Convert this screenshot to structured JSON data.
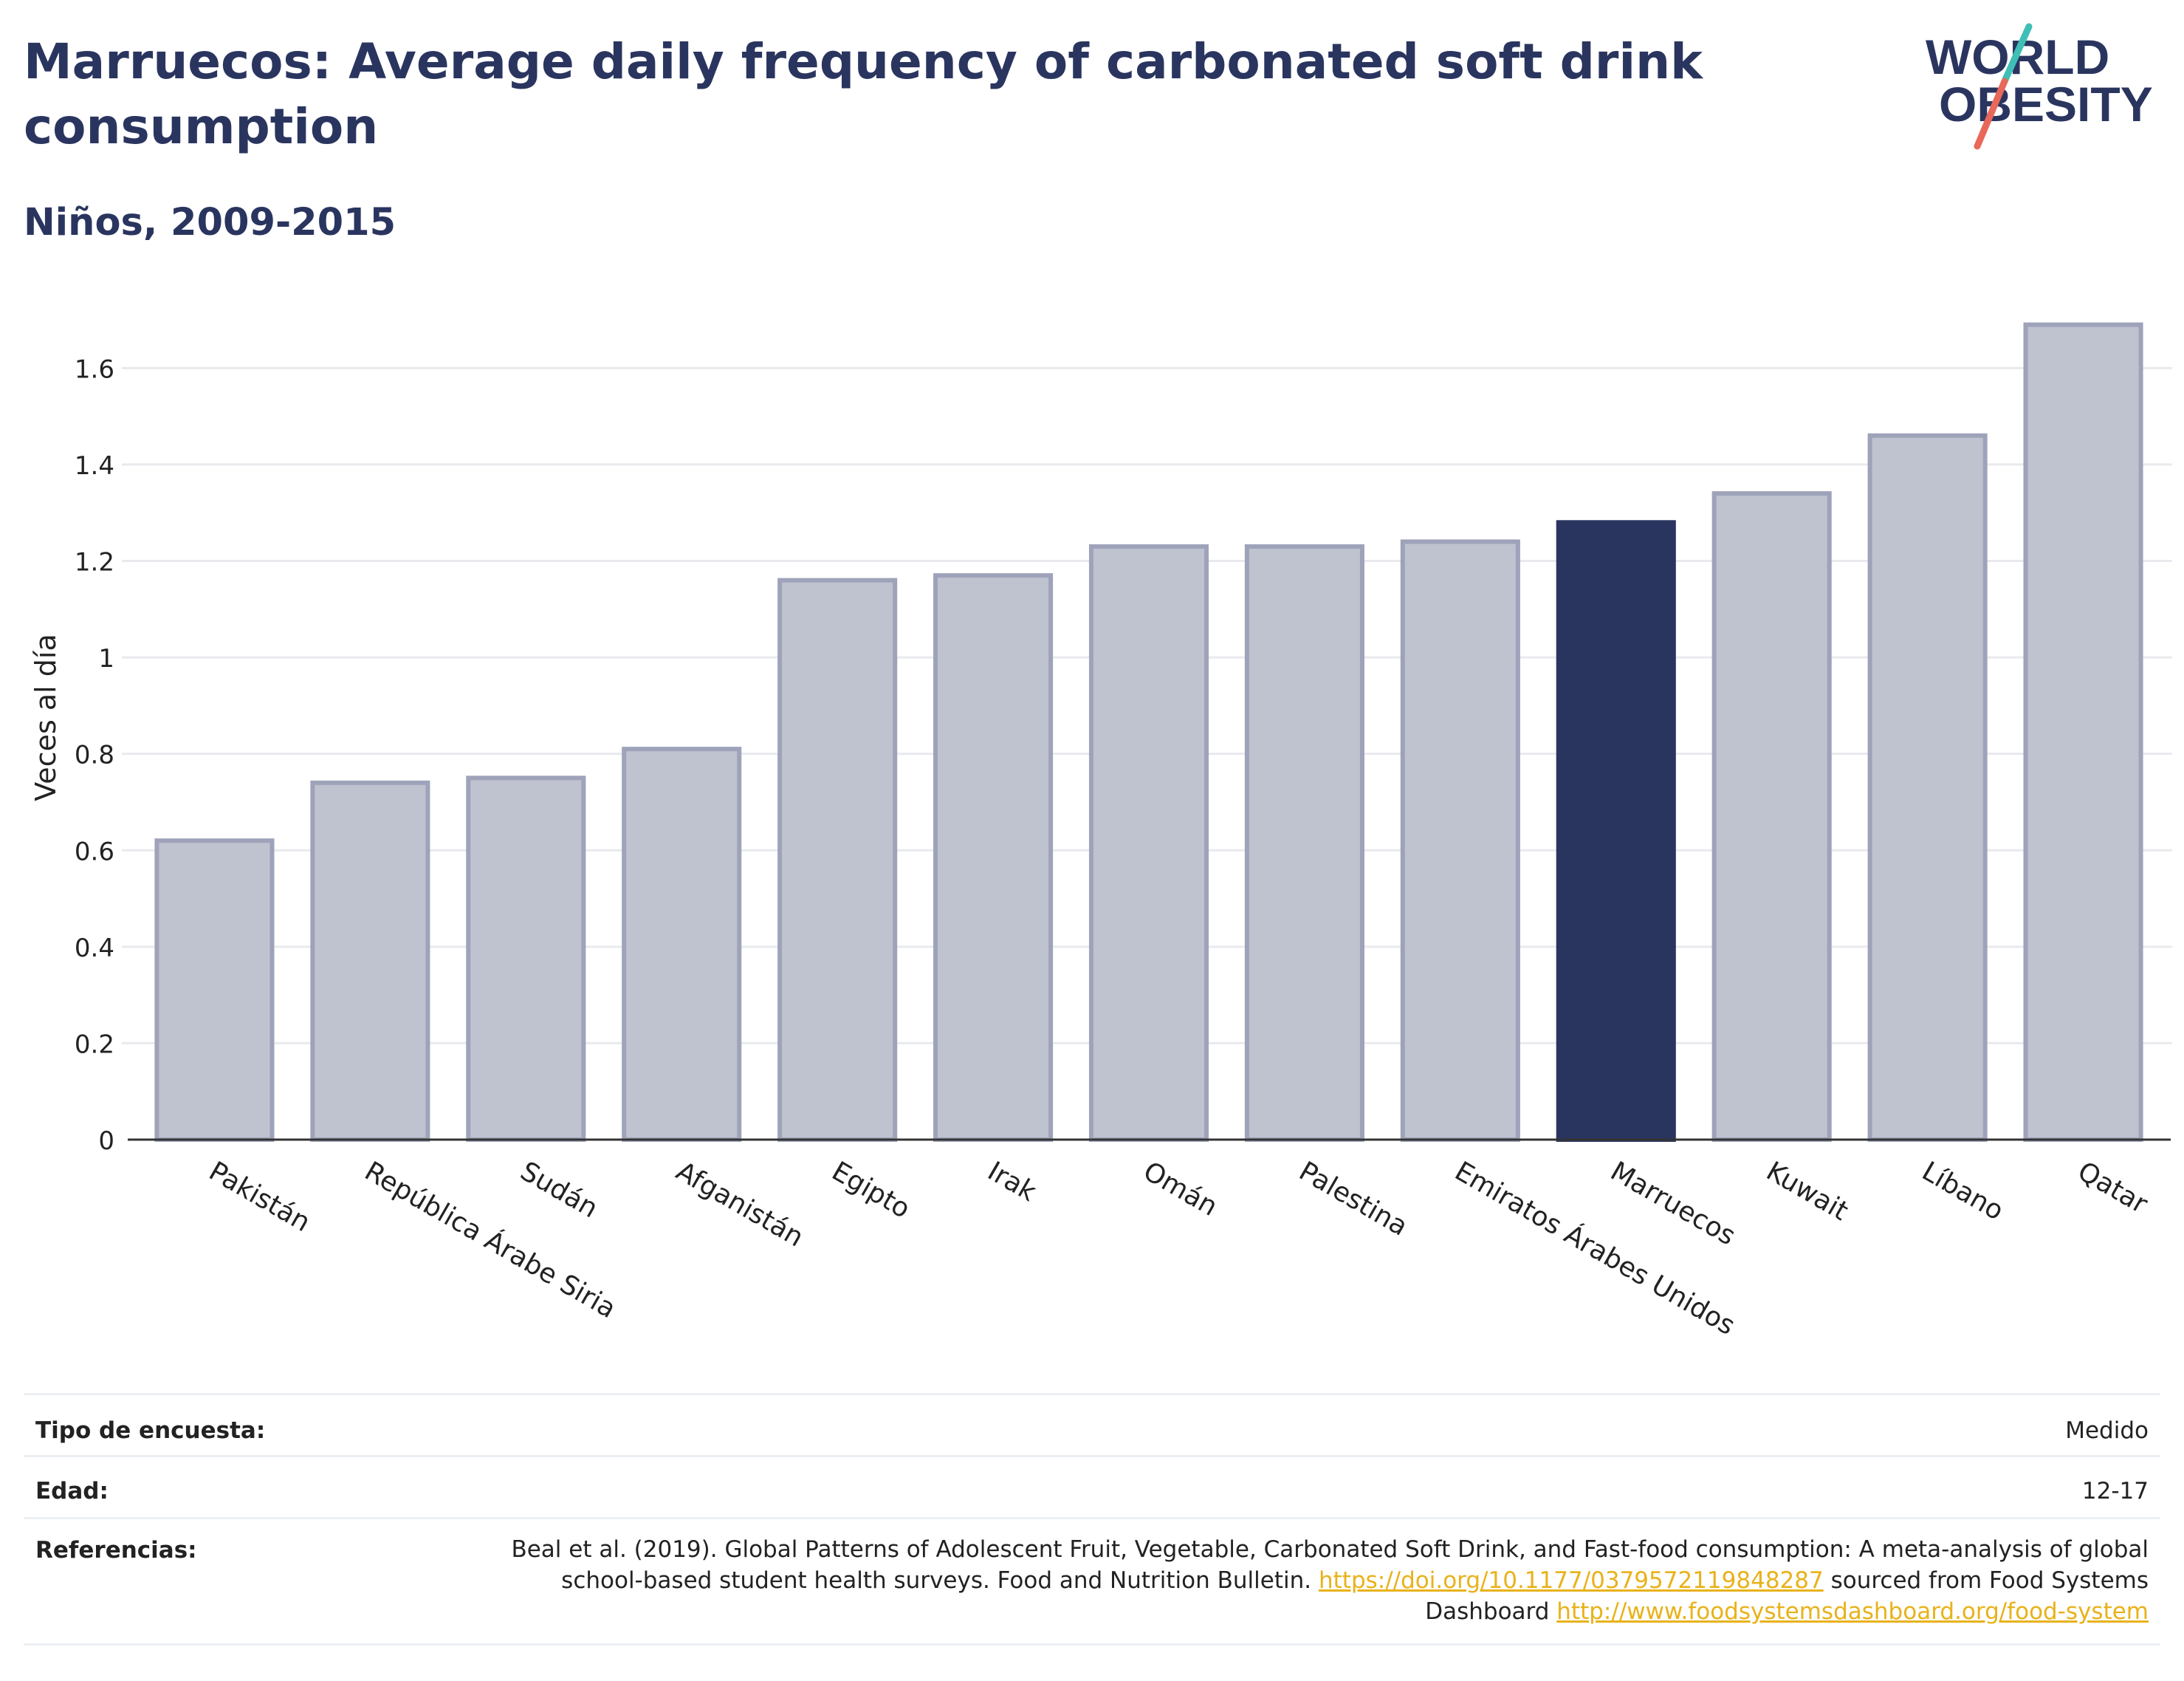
{
  "header": {
    "title": "Marruecos: Average daily frequency of carbonated soft drink consumption",
    "subtitle": "Niños, 2009-2015",
    "logo_line1": "WORLD",
    "logo_line2": "OBESITY"
  },
  "colors": {
    "bar": "#bfc2cf",
    "bar_border": "#9ea3ba",
    "highlight": "#2a355f",
    "grid": "#e8eaee",
    "axis": "#333333",
    "logo_teal": "#3fbfb5",
    "logo_coral": "#e8685a",
    "link": "#e8b21a"
  },
  "chart_data": {
    "type": "bar",
    "ylabel": "Veces al día",
    "ylim": [
      0,
      1.72
    ],
    "yticks": [
      0,
      0.2,
      0.4,
      0.6,
      0.8,
      1,
      1.2,
      1.4,
      1.6
    ],
    "ytick_labels": [
      "0",
      "0.2",
      "0.4",
      "0.6",
      "0.8",
      "1",
      "1.2",
      "1.4",
      "1.6"
    ],
    "grid": true,
    "categories": [
      "Pakistán",
      "República Árabe Siria",
      "Sudán",
      "Afganistán",
      "Egipto",
      "Irak",
      "Omán",
      "Palestina",
      "Emiratos Árabes Unidos",
      "Marruecos",
      "Kuwait",
      "Líbano",
      "Qatar"
    ],
    "values": [
      0.62,
      0.74,
      0.75,
      0.81,
      1.16,
      1.17,
      1.23,
      1.23,
      1.24,
      1.28,
      1.34,
      1.46,
      1.69
    ],
    "highlight": "Marruecos"
  },
  "meta": {
    "survey_label": "Tipo de encuesta:",
    "survey_value": "Medido",
    "age_label": "Edad:",
    "age_value": "12-17",
    "ref_label": "Referencias:",
    "ref_text1": "Beal et al. (2019). Global Patterns of Adolescent Fruit, Vegetable, Carbonated Soft Drink, and Fast-food consumption: A meta-analysis of global school-based student health surveys. Food and Nutrition Bulletin. ",
    "ref_link1": "https://doi.org/10.1177/0379572119848287",
    "ref_text2": " sourced from Food Systems Dashboard ",
    "ref_link2": "http://www.foodsystemsdashboard.org/food-system"
  }
}
